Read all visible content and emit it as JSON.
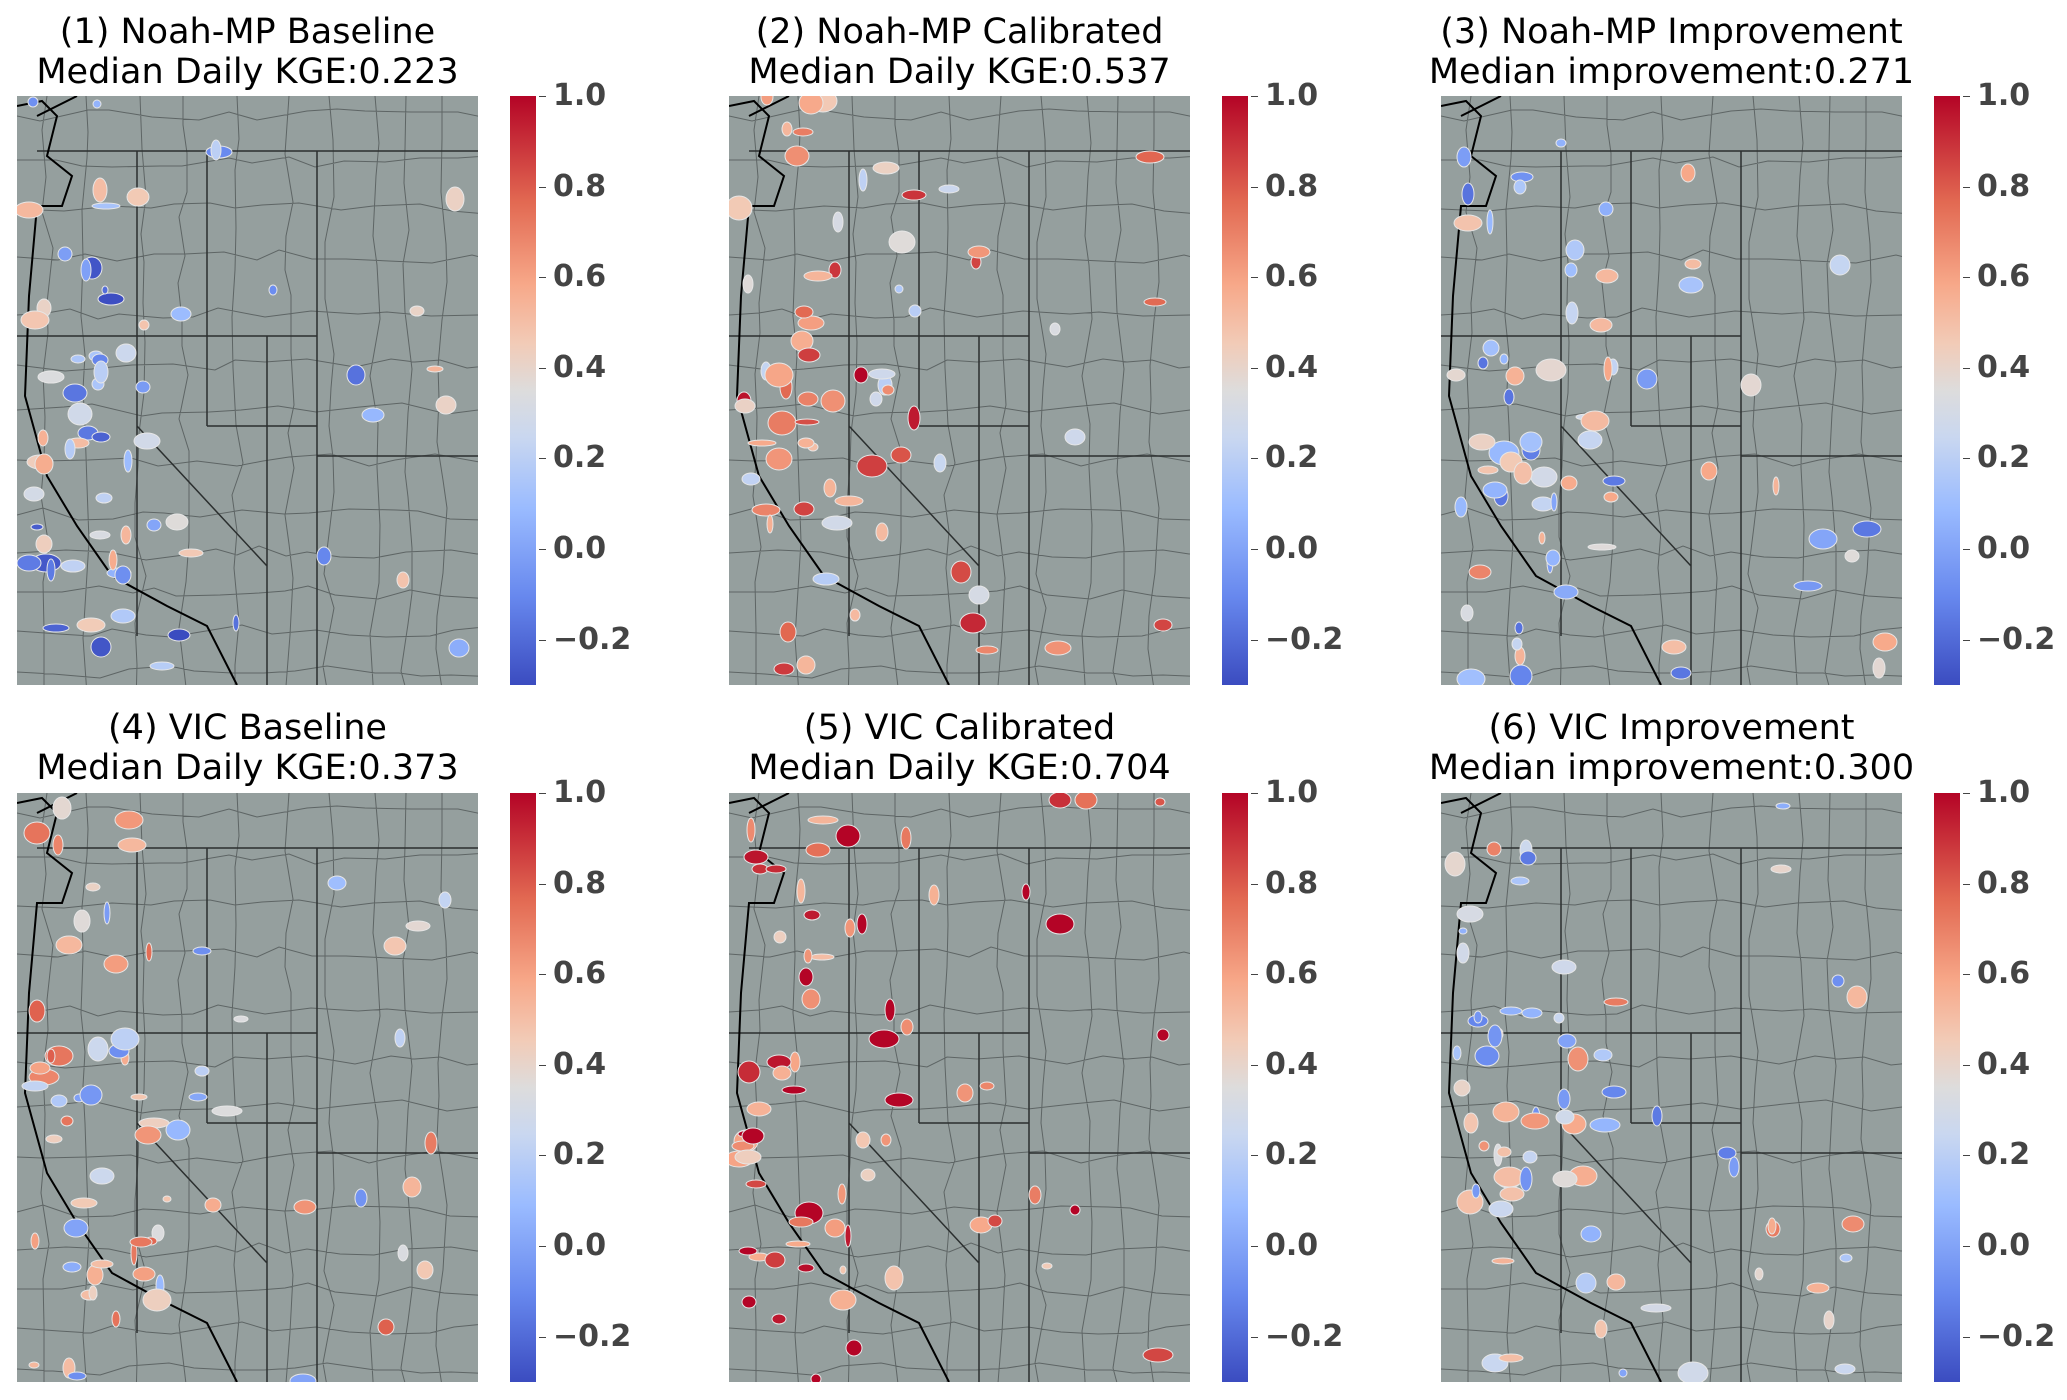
{
  "colorbar": {
    "colormap": "coolwarm",
    "range": [
      -0.3,
      1.0
    ],
    "ticks": [
      "1.0",
      "0.8",
      "0.6",
      "0.4",
      "0.2",
      "0.0",
      "−0.2"
    ],
    "tick_values": [
      1.0,
      0.8,
      0.6,
      0.4,
      0.2,
      0.0,
      -0.2
    ]
  },
  "map_colors": {
    "background": "#959f9e",
    "boundaries": "#3a3f3f",
    "coast": "#000000"
  },
  "panels": [
    {
      "title": "(1) Noah-MP Baseline",
      "subtitle": "Median Daily KGE:0.223",
      "median": 0.223,
      "bias": -0.15
    },
    {
      "title": "(2) Noah-MP Calibrated",
      "subtitle": "Median Daily KGE:0.537",
      "median": 0.537,
      "bias": 0.15
    },
    {
      "title": "(3) Noah-MP Improvement",
      "subtitle": "Median improvement:0.271",
      "median": 0.271,
      "bias": 0.0
    },
    {
      "title": "(4) VIC Baseline",
      "subtitle": "Median Daily KGE:0.373",
      "median": 0.373,
      "bias": 0.0
    },
    {
      "title": "(5) VIC Calibrated",
      "subtitle": "Median Daily KGE:0.704",
      "median": 0.704,
      "bias": 0.3
    },
    {
      "title": "(6) VIC Improvement",
      "subtitle": "Median improvement:0.300",
      "median": 0.3,
      "bias": 0.0
    }
  ]
}
